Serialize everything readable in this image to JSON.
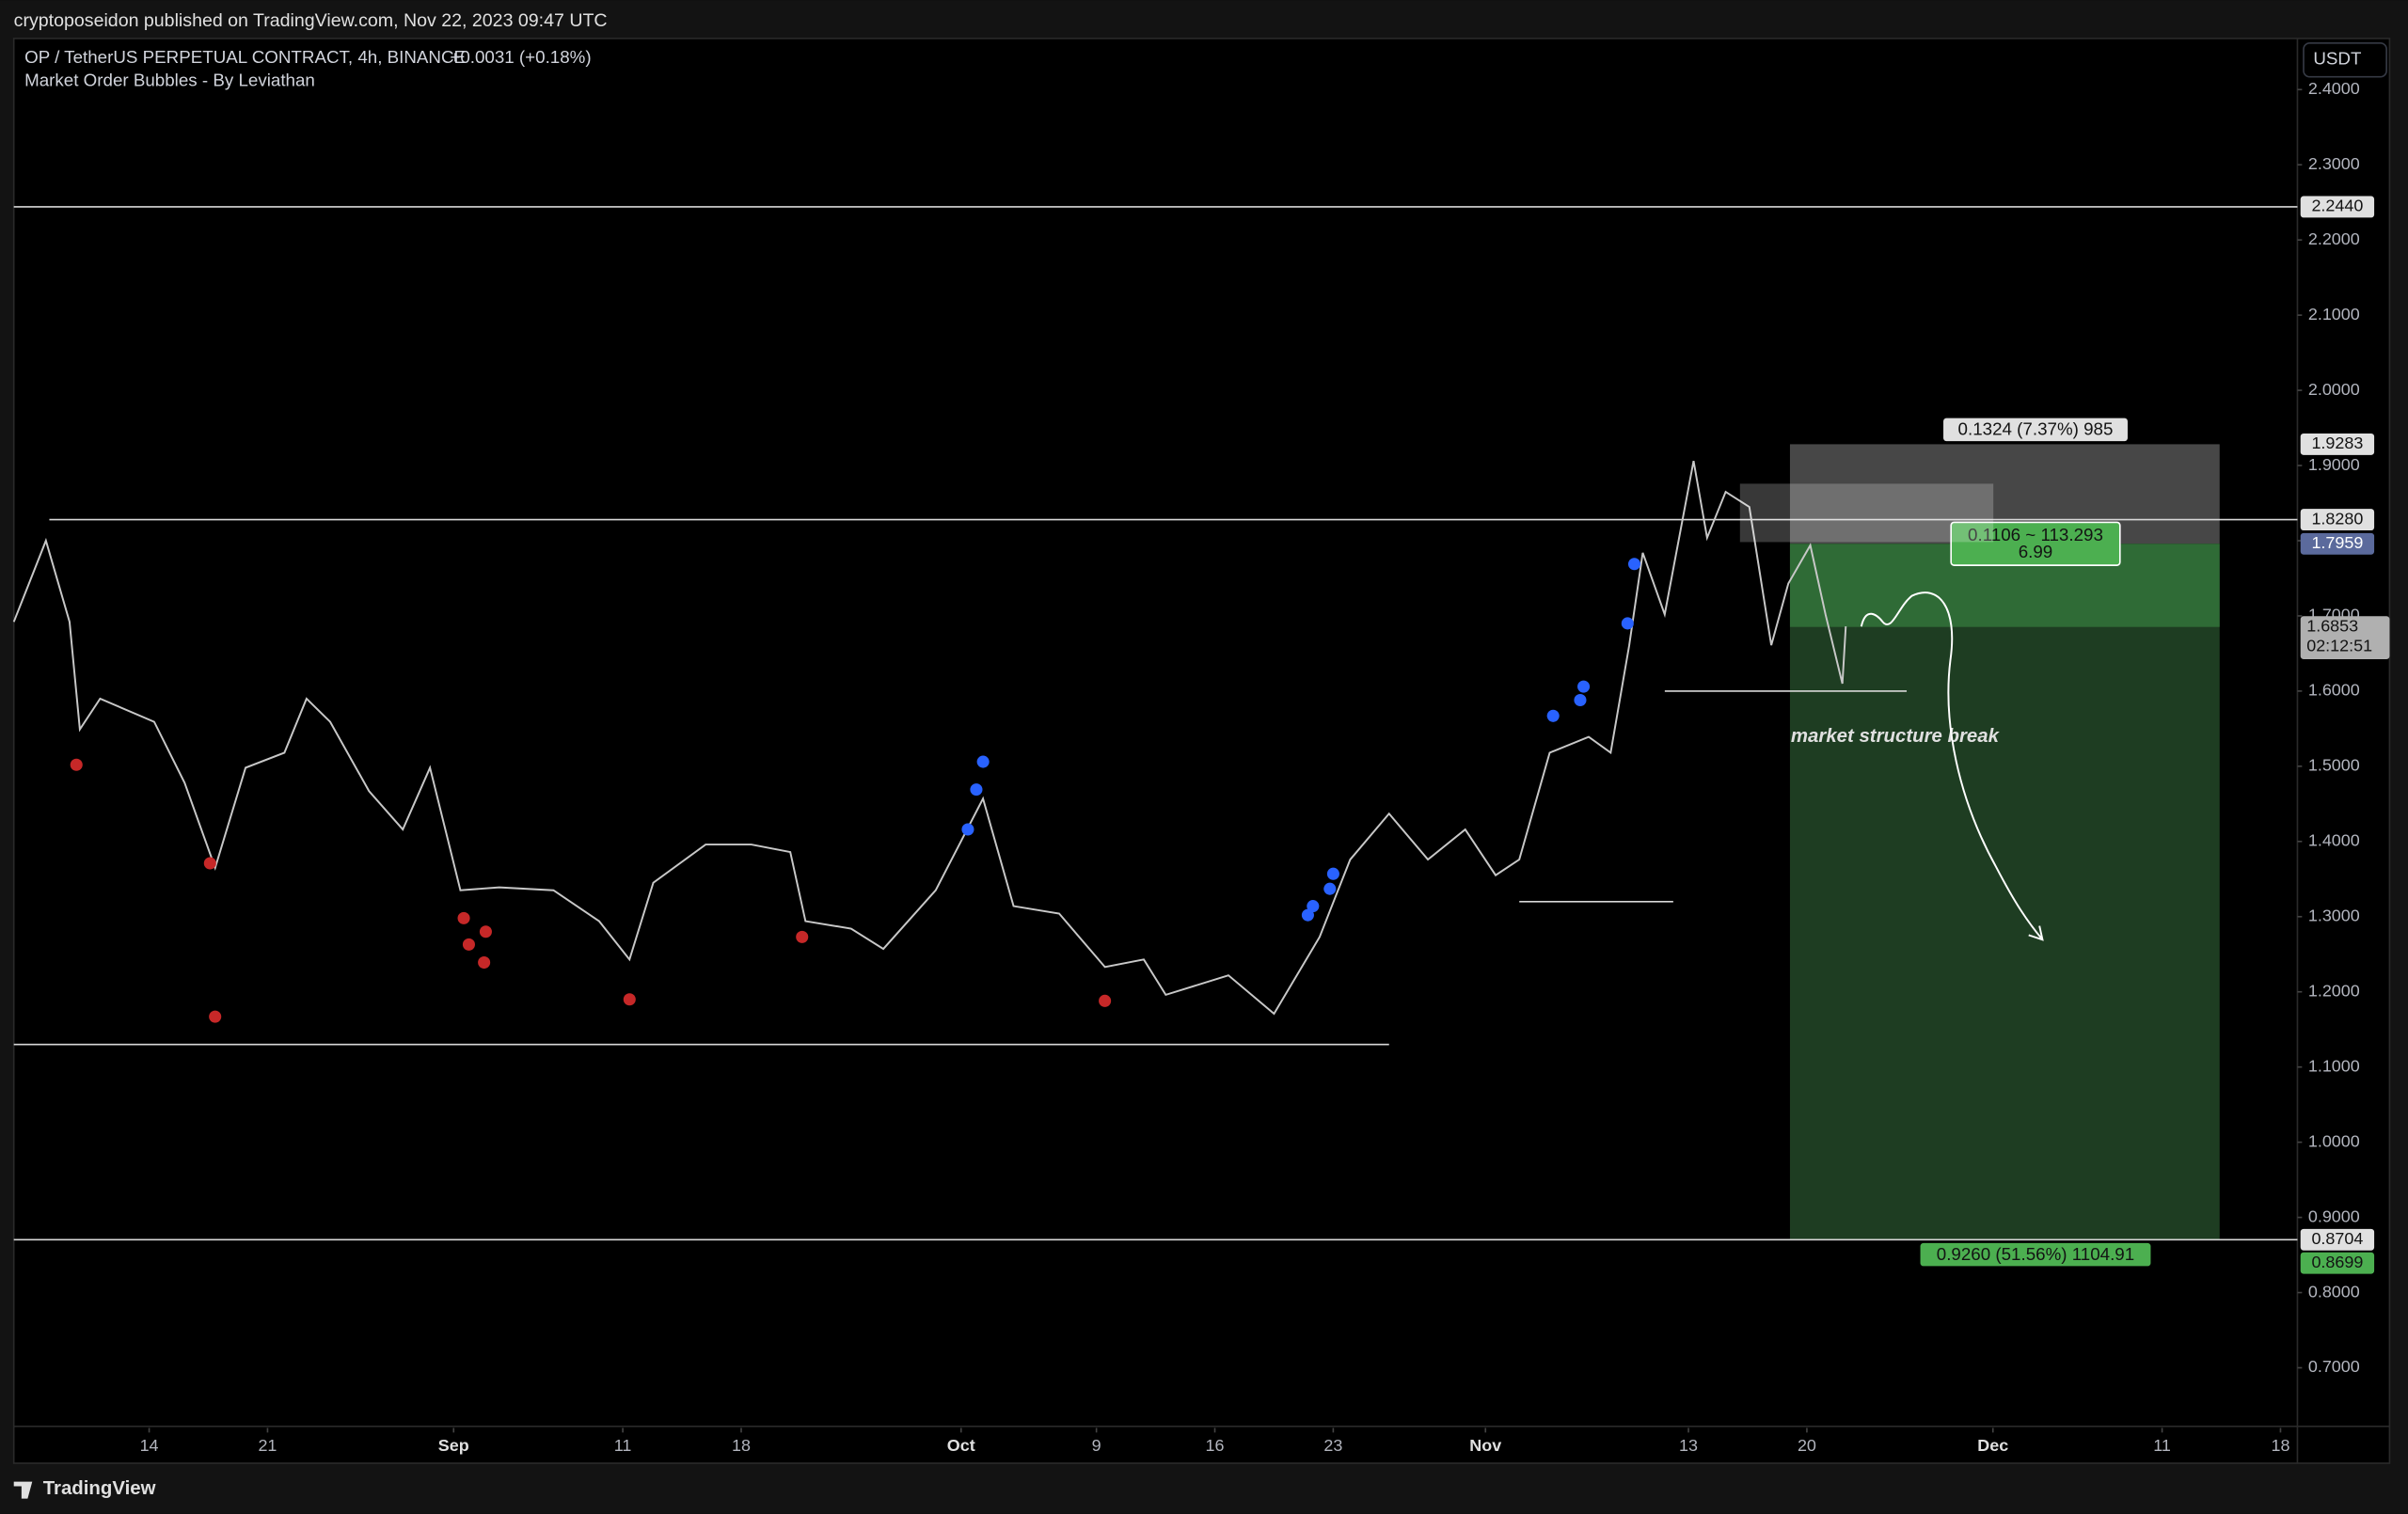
{
  "header": {
    "publisher": "cryptoposeidon published on TradingView.com, Nov 22, 2023 09:47 UTC",
    "brand": "TradingView"
  },
  "chart_data": {
    "type": "line",
    "title": "OP / TetherUS PERPETUAL CONTRACT, 4h, BINANCE",
    "change": "+0.0031 (+0.18%)",
    "indicator": "Market Order Bubbles - By Leviathan",
    "currency": "USDT",
    "xlim": [
      6,
      141
    ],
    "xticks": [
      14,
      {
        "value": 21,
        "label": "21"
      },
      {
        "value": 32,
        "label": "Sep"
      },
      {
        "value": 42,
        "label": "11"
      },
      {
        "value": 49,
        "label": "18"
      },
      {
        "value": 62,
        "label": "Oct"
      },
      {
        "value": 70,
        "label": "9"
      },
      {
        "value": 77,
        "label": "16"
      },
      {
        "value": 84,
        "label": "23"
      },
      {
        "value": 93,
        "label": "Nov"
      },
      {
        "value": 105,
        "label": "13"
      },
      {
        "value": 112,
        "label": "20"
      },
      {
        "value": 123,
        "label": "Dec"
      },
      {
        "value": 133,
        "label": "11"
      },
      {
        "value": 140,
        "label": "18"
      }
    ],
    "ylim": [
      0.62,
      2.47
    ],
    "yticks": [
      {
        "value": 0.7,
        "label": "0.7000"
      },
      {
        "value": 0.8,
        "label": "0.8000"
      },
      {
        "value": 0.9,
        "label": "0.9000"
      },
      {
        "value": 1.0,
        "label": "1.0000"
      },
      {
        "value": 1.1,
        "label": "1.1000"
      },
      {
        "value": 1.2,
        "label": "1.2000"
      },
      {
        "value": 1.3,
        "label": "1.3000"
      },
      {
        "value": 1.4,
        "label": "1.4000"
      },
      {
        "value": 1.5,
        "label": "1.5000"
      },
      {
        "value": 1.6,
        "label": "1.6000"
      },
      {
        "value": 1.7,
        "label": "1.7000"
      },
      {
        "value": 1.8,
        "label": "1.8000"
      },
      {
        "value": 1.9,
        "label": "1.9000"
      },
      {
        "value": 2.0,
        "label": "2.0000"
      },
      {
        "value": 2.1,
        "label": "2.1000"
      },
      {
        "value": 2.2,
        "label": "2.2000"
      },
      {
        "value": 2.3,
        "label": "2.3000"
      },
      {
        "value": 2.4,
        "label": "2.4000"
      }
    ],
    "price": {
      "color": "#c8c8c8",
      "x": [
        6.0,
        7.9,
        9.3,
        9.9,
        11.1,
        14.3,
        16.1,
        17.9,
        19.7,
        22.0,
        23.3,
        24.7,
        27.0,
        29.0,
        30.6,
        32.4,
        34.7,
        37.9,
        40.6,
        42.4,
        43.8,
        46.9,
        49.6,
        51.9,
        52.8,
        55.5,
        57.4,
        60.5,
        63.3,
        65.1,
        67.8,
        70.5,
        72.8,
        74.1,
        77.8,
        80.5,
        83.2,
        85.0,
        87.3,
        89.6,
        91.8,
        93.6,
        95.0,
        96.8,
        99.1,
        100.4,
        101.5,
        102.3,
        103.6,
        105.3,
        106.1,
        107.2,
        108.6,
        109.9,
        110.9,
        112.2,
        113.1,
        114.1,
        114.3
      ],
      "values": [
        1.692,
        1.8,
        1.692,
        1.549,
        1.59,
        1.559,
        1.478,
        1.365,
        1.498,
        1.518,
        1.59,
        1.559,
        1.467,
        1.416,
        1.498,
        1.335,
        1.339,
        1.335,
        1.294,
        1.243,
        1.345,
        1.396,
        1.396,
        1.386,
        1.294,
        1.284,
        1.257,
        1.335,
        1.457,
        1.314,
        1.304,
        1.233,
        1.243,
        1.196,
        1.222,
        1.171,
        1.273,
        1.376,
        1.437,
        1.376,
        1.416,
        1.355,
        1.376,
        1.518,
        1.539,
        1.518,
        1.661,
        1.784,
        1.702,
        1.906,
        1.804,
        1.865,
        1.845,
        1.661,
        1.743,
        1.794,
        1.702,
        1.61,
        1.686
      ]
    },
    "bubbles": [
      {
        "color": "#c62828",
        "x": [
          9.7,
          17.6,
          17.9,
          32.6,
          32.9,
          33.8,
          33.9,
          42.4,
          52.6,
          70.5
        ],
        "values": [
          1.502,
          1.371,
          1.167,
          1.298,
          1.263,
          1.239,
          1.28,
          1.19,
          1.273,
          1.188
        ]
      },
      {
        "color": "#2962ff",
        "x": [
          63.3,
          62.9,
          62.4,
          82.5,
          82.8,
          83.8,
          84.0,
          97.0,
          98.6,
          98.8,
          101.4,
          101.8
        ],
        "values": [
          1.506,
          1.469,
          1.416,
          1.302,
          1.314,
          1.337,
          1.357,
          1.567,
          1.588,
          1.606,
          1.69,
          1.769
        ]
      }
    ],
    "levels": [
      {
        "value": 2.244,
        "label": "2.2440",
        "x": [
          6,
          141
        ]
      },
      {
        "value": 1.828,
        "label": "1.8280",
        "x": [
          8.1,
          141
        ]
      },
      {
        "value": 0.8704,
        "label": "0.8704",
        "x": [
          6,
          141
        ]
      },
      {
        "value": 1.13,
        "x": [
          6,
          87.3
        ]
      },
      {
        "value": 1.6,
        "x": [
          103.6,
          117.9
        ]
      },
      {
        "value": 1.32,
        "x": [
          95,
          104.1
        ]
      }
    ],
    "position": {
      "x": [
        111,
        136.4
      ],
      "entry": 1.7959,
      "stop": 1.9283,
      "target": 0.8699,
      "stop_text": "0.1324 (7.37%) 985",
      "center_text": [
        "0.1106 ~ 113.293",
        "6.99"
      ],
      "target_text": "0.9260 (51.56%) 1104.91"
    },
    "last": {
      "value": 1.6853,
      "countdown": "02:12:51"
    },
    "annotation": {
      "text": "market structure break",
      "x": 117.2,
      "value": 1.539
    }
  }
}
